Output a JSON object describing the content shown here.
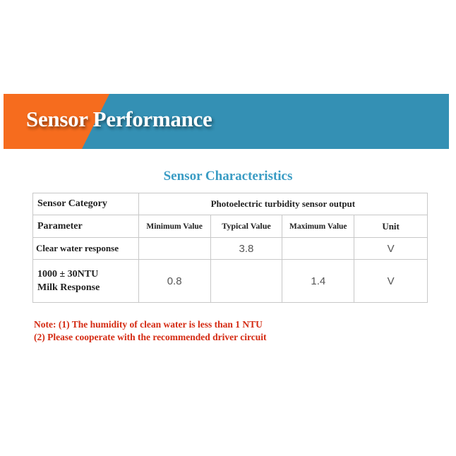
{
  "banner": {
    "title": "Sensor Performance",
    "colors": {
      "orange": "#f66c1e",
      "blue": "#3490b4"
    }
  },
  "subtitle": "Sensor Characteristics",
  "table": {
    "category_label": "Sensor Category",
    "category_value": "Photoelectric turbidity sensor output",
    "headers": [
      "Parameter",
      "Minimum Value",
      "Typical Value",
      "Maximum Value",
      "Unit"
    ],
    "rows": [
      {
        "param": "Clear water response",
        "min": "",
        "typ": "3.8",
        "max": "",
        "unit": "V"
      },
      {
        "param_line1": "1000 ± 30NTU",
        "param_line2": "Milk Response",
        "min": "0.8",
        "typ": "",
        "max": "1.4",
        "unit": "V"
      }
    ]
  },
  "notes": [
    "Note: (1) The humidity of clean water is less than 1 NTU",
    "(2) Please cooperate with the recommended driver circuit"
  ]
}
